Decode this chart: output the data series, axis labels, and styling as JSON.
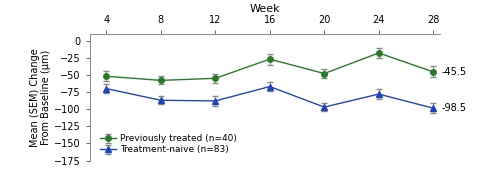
{
  "weeks": [
    4,
    8,
    12,
    16,
    20,
    24,
    28
  ],
  "prev_treated": {
    "y": [
      -52,
      -58,
      -55,
      -27,
      -48,
      -18,
      -45.5
    ],
    "yerr": [
      7,
      6,
      7,
      8,
      7,
      8,
      8
    ],
    "label": "Previously treated (n=40)",
    "color": "#2a7a2a",
    "marker": "o"
  },
  "naive": {
    "y": [
      -70,
      -87,
      -88,
      -67,
      -97,
      -78,
      -98.5
    ],
    "yerr": [
      6,
      6,
      7,
      7,
      6,
      7,
      7
    ],
    "label": "Treatment-naive (n=83)",
    "color": "#2244bb",
    "marker": "^"
  },
  "xlabel": "Week",
  "ylabel": "Mean (SEM) Change\nFrom Baseline (μm)",
  "ylim": [
    -175,
    10
  ],
  "yticks": [
    0,
    -25,
    -50,
    -75,
    -100,
    -125,
    -150,
    -175
  ],
  "xticks": [
    4,
    8,
    12,
    16,
    20,
    24,
    28
  ],
  "annotation_prev": "-45.5",
  "annotation_naive": "-98.5",
  "bg_color": "#ffffff"
}
